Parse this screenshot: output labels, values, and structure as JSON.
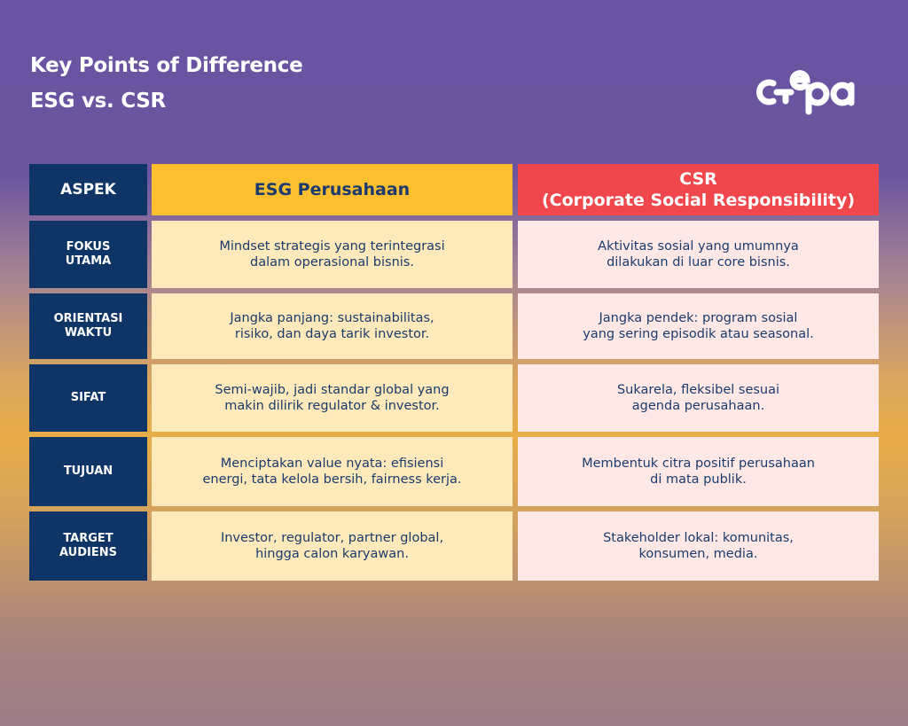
{
  "title": {
    "line1": "Key Points of Difference",
    "line2": "ESG vs. CSR"
  },
  "logo": {
    "text": "cepa",
    "color": "#ffffff"
  },
  "colors": {
    "aspek": "#0f3466",
    "esg_header": "#fbbf2f",
    "csr_header": "#f0474c",
    "esg_cell": "#fde9b9",
    "csr_cell": "#fde8e6",
    "text": "#1c3a6e"
  },
  "headers": {
    "aspek": "ASPEK",
    "esg": "ESG Perusahaan",
    "csr_line1": "CSR",
    "csr_line2": "(Corporate Social Responsibility)"
  },
  "rows": [
    {
      "aspek": [
        "FOKUS",
        "UTAMA"
      ],
      "esg": [
        "Mindset strategis yang terintegrasi",
        "dalam operasional bisnis."
      ],
      "csr": [
        "Aktivitas sosial yang umumnya",
        "dilakukan di luar core bisnis."
      ]
    },
    {
      "aspek": [
        "ORIENTASI",
        "WAKTU"
      ],
      "esg": [
        "Jangka panjang: sustainabilitas,",
        "risiko, dan daya tarik investor."
      ],
      "csr": [
        "Jangka pendek: program sosial",
        "yang sering episodik atau seasonal."
      ]
    },
    {
      "aspek": [
        "SIFAT",
        ""
      ],
      "esg": [
        "Semi-wajib, jadi standar global yang",
        "makin dilirik regulator & investor."
      ],
      "csr": [
        "Sukarela, fleksibel sesuai",
        "agenda perusahaan."
      ]
    },
    {
      "aspek": [
        "TUJUAN",
        ""
      ],
      "esg": [
        "Menciptakan value nyata: efisiensi",
        "energi, tata kelola bersih, fairness kerja."
      ],
      "csr": [
        "Membentuk citra positif perusahaan",
        "di mata publik."
      ]
    },
    {
      "aspek": [
        "TARGET",
        "AUDIENS"
      ],
      "esg": [
        "Investor, regulator, partner global,",
        "hingga calon karyawan."
      ],
      "csr": [
        "Stakeholder lokal: komunitas,",
        "konsumen, media."
      ]
    }
  ]
}
